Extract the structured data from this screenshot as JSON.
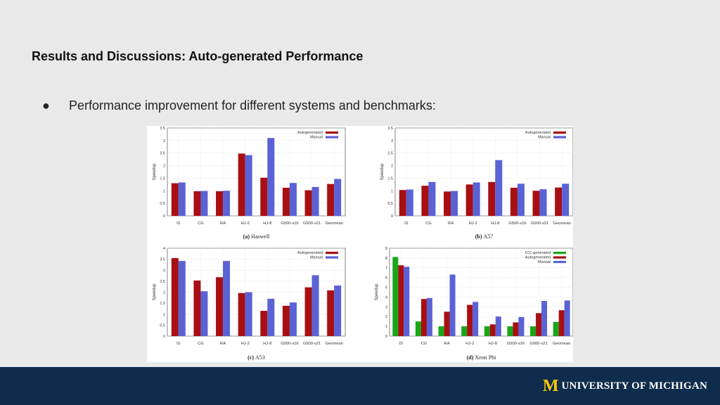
{
  "slide": {
    "title": "Results and Discussions: Auto-generated Performance",
    "bullet_glyph": "●",
    "bullet_text": "Performance improvement for different systems and benchmarks:"
  },
  "footer": {
    "logo_mark": "M",
    "logo_text": "UNIVERSITY OF MICHIGAN"
  },
  "colors": {
    "accent_dark_red": "#a80f12",
    "accent_blue": "#5a62d6",
    "accent_green": "#1aa51a",
    "footer_navy": "#0f2c4d",
    "maize": "#ffcb05"
  },
  "chart_data": [
    {
      "type": "bar",
      "caption_letter": "(a)",
      "caption_name": "Haswell",
      "ylabel": "Speedup",
      "ylim": [
        0,
        3.5
      ],
      "yticks": [
        "0",
        "0.5",
        "1",
        "1.5",
        "2",
        "2.5",
        "3",
        "3.5"
      ],
      "categories": [
        "IS",
        "CG",
        "RA",
        "HJ-2",
        "HJ-8",
        "G500-s16",
        "G500-s21",
        "Geomean"
      ],
      "series": [
        {
          "name": "Autogenerated",
          "color": "#a80f12",
          "values": [
            1.3,
            0.98,
            0.98,
            2.48,
            1.52,
            1.12,
            1.02,
            1.27
          ]
        },
        {
          "name": "Manual",
          "color": "#5a62d6",
          "values": [
            1.33,
            0.99,
            1.0,
            2.42,
            3.1,
            1.31,
            1.15,
            1.47
          ]
        }
      ],
      "grid": true,
      "legend": "top-right"
    },
    {
      "type": "bar",
      "caption_letter": "(b)",
      "caption_name": "A57",
      "ylabel": "Speedup",
      "ylim": [
        0,
        3.5
      ],
      "yticks": [
        "0",
        "0.5",
        "1",
        "1.5",
        "2",
        "2.5",
        "3",
        "3.5"
      ],
      "categories": [
        "IS",
        "CG",
        "RA",
        "HJ-2",
        "HJ-8",
        "G500-s16",
        "G500-s21",
        "Geomean"
      ],
      "series": [
        {
          "name": "Autogenerated",
          "color": "#a80f12",
          "values": [
            1.03,
            1.2,
            0.97,
            1.25,
            1.35,
            1.12,
            1.0,
            1.13
          ]
        },
        {
          "name": "Manual",
          "color": "#5a62d6",
          "values": [
            1.05,
            1.35,
            0.99,
            1.33,
            2.22,
            1.28,
            1.06,
            1.28
          ]
        }
      ],
      "grid": true,
      "legend": "top-right"
    },
    {
      "type": "bar",
      "caption_letter": "(c)",
      "caption_name": "A53",
      "ylabel": "Speedup",
      "ylim": [
        0,
        4
      ],
      "yticks": [
        "0",
        "0.5",
        "1",
        "1.5",
        "2",
        "2.5",
        "3",
        "3.5",
        "4"
      ],
      "categories": [
        "IS",
        "CG",
        "RA",
        "HJ-2",
        "HJ-8",
        "G500-s16",
        "G500-s21",
        "Geomean"
      ],
      "series": [
        {
          "name": "Autogenerated",
          "color": "#a80f12",
          "values": [
            3.55,
            2.53,
            2.68,
            1.96,
            1.15,
            1.38,
            2.22,
            2.08
          ]
        },
        {
          "name": "Manual",
          "color": "#5a62d6",
          "values": [
            3.42,
            2.04,
            3.42,
            2.0,
            1.7,
            1.53,
            2.77,
            2.3
          ]
        }
      ],
      "grid": true,
      "legend": "top-right"
    },
    {
      "type": "bar",
      "caption_letter": "(d)",
      "caption_name": "Xeon Phi",
      "ylabel": "Speedup",
      "ylim": [
        0,
        9
      ],
      "yticks": [
        "0",
        "1",
        "2",
        "3",
        "4",
        "5",
        "6",
        "7",
        "8",
        "9"
      ],
      "categories": [
        "IS",
        "CG",
        "RA",
        "HJ-2",
        "HJ-8",
        "G500-s16",
        "G500-s21",
        "Geomean"
      ],
      "series": [
        {
          "name": "ICC-generated",
          "color": "#1aa51a",
          "values": [
            8.1,
            1.5,
            1.0,
            1.0,
            1.0,
            1.0,
            1.0,
            1.45
          ]
        },
        {
          "name": "Autogenerated",
          "color": "#a80f12",
          "values": [
            7.25,
            3.8,
            2.5,
            3.2,
            1.2,
            1.4,
            2.35,
            2.65
          ]
        },
        {
          "name": "Manual",
          "color": "#5a62d6",
          "values": [
            7.1,
            3.9,
            6.3,
            3.5,
            2.0,
            1.95,
            3.6,
            3.65
          ]
        }
      ],
      "grid": true,
      "legend": "top-right"
    }
  ]
}
